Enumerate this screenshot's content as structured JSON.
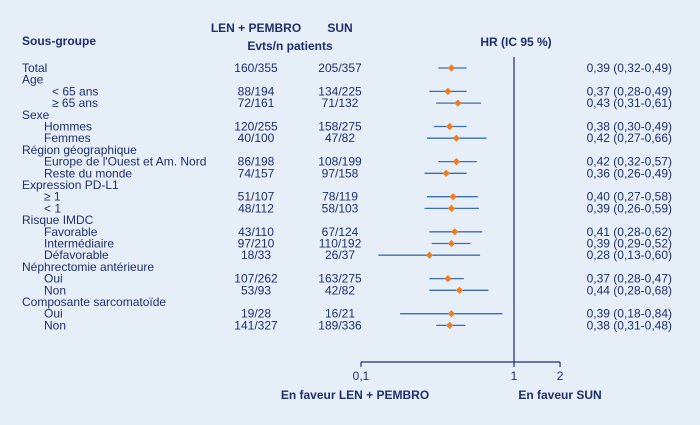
{
  "chart_data": {
    "type": "forest",
    "x_axis": {
      "scale": "log",
      "range": [
        0.1,
        2
      ],
      "ticks": [
        "0,1",
        "1",
        "2"
      ],
      "reference_line": 1
    },
    "headers": {
      "subgroup": "Sous-groupe",
      "len_pembro": "LEN + PEMBRO",
      "sun": "SUN",
      "events": "Evts/n patients",
      "hr": "HR (IC 95 %)"
    },
    "footer": {
      "left": "En faveur LEN + PEMBRO",
      "right": "En faveur SUN"
    },
    "rows": [
      {
        "label": "Total",
        "indent": 0,
        "len": "160/355",
        "sun": "205/357",
        "hr_text": "0,39 (0,32-0,49)",
        "hr": 0.39,
        "lo": 0.32,
        "hi": 0.49
      },
      {
        "label": "Age",
        "indent": 0,
        "header": true
      },
      {
        "label": "< 65 ans",
        "indent": 2,
        "len": "88/194",
        "sun": "134/225",
        "hr_text": "0,37 (0,28-0,49)",
        "hr": 0.37,
        "lo": 0.28,
        "hi": 0.49
      },
      {
        "label": "≥ 65 ans",
        "indent": 2,
        "len": "72/161",
        "sun": "71/132",
        "hr_text": "0,43 (0,31-0,61)",
        "hr": 0.43,
        "lo": 0.31,
        "hi": 0.61
      },
      {
        "label": "Sexe",
        "indent": 0,
        "header": true
      },
      {
        "label": "Hommes",
        "indent": 1,
        "len": "120/255",
        "sun": "158/275",
        "hr_text": "0,38 (0,30-0,49)",
        "hr": 0.38,
        "lo": 0.3,
        "hi": 0.49
      },
      {
        "label": "Femmes",
        "indent": 1,
        "len": "40/100",
        "sun": "47/82",
        "hr_text": "0,42 (0,27-0,66)",
        "hr": 0.42,
        "lo": 0.27,
        "hi": 0.66
      },
      {
        "label": "Région géographique",
        "indent": 0,
        "header": true
      },
      {
        "label": "Europe de l'Ouest et Am. Nord",
        "indent": 1,
        "len": "86/198",
        "sun": "108/199",
        "hr_text": "0,42 (0,32-0,57)",
        "hr": 0.42,
        "lo": 0.32,
        "hi": 0.57
      },
      {
        "label": "Reste du monde",
        "indent": 1,
        "len": "74/157",
        "sun": "97/158",
        "hr_text": "0,36 (0,26-0,49)",
        "hr": 0.36,
        "lo": 0.26,
        "hi": 0.49
      },
      {
        "label": "Expression PD-L1",
        "indent": 0,
        "header": true
      },
      {
        "label": "≥ 1",
        "indent": 1,
        "len": "51/107",
        "sun": "78/119",
        "hr_text": "0,40 (0,27-0,58)",
        "hr": 0.4,
        "lo": 0.27,
        "hi": 0.58
      },
      {
        "label": "< 1",
        "indent": 1,
        "len": "48/112",
        "sun": "58/103",
        "hr_text": "0,39 (0,26-0,59)",
        "hr": 0.39,
        "lo": 0.26,
        "hi": 0.59
      },
      {
        "label": "Risque IMDC",
        "indent": 0,
        "header": true
      },
      {
        "label": "Favorable",
        "indent": 1,
        "len": "43/110",
        "sun": "67/124",
        "hr_text": "0,41 (0,28-0,62)",
        "hr": 0.41,
        "lo": 0.28,
        "hi": 0.62
      },
      {
        "label": "Intermédiaire",
        "indent": 1,
        "len": "97/210",
        "sun": "110/192",
        "hr_text": "0,39 (0,29-0,52)",
        "hr": 0.39,
        "lo": 0.29,
        "hi": 0.52
      },
      {
        "label": "Défavorable",
        "indent": 1,
        "len": "18/33",
        "sun": "26/37",
        "hr_text": "0,28 (0,13-0,60)",
        "hr": 0.28,
        "lo": 0.13,
        "hi": 0.6
      },
      {
        "label": "Néphrectomie antérieure",
        "indent": 0,
        "header": true
      },
      {
        "label": "Oui",
        "indent": 1,
        "len": "107/262",
        "sun": "163/275",
        "hr_text": "0,37 (0,28-0,47)",
        "hr": 0.37,
        "lo": 0.28,
        "hi": 0.47
      },
      {
        "label": "Non",
        "indent": 1,
        "len": "53/93",
        "sun": "42/82",
        "hr_text": "0,44 (0,28-0,68)",
        "hr": 0.44,
        "lo": 0.28,
        "hi": 0.68
      },
      {
        "label": "Composante sarcomatoïde",
        "indent": 0,
        "header": true
      },
      {
        "label": "Oui",
        "indent": 1,
        "len": "19/28",
        "sun": "16/21",
        "hr_text": "0,39 (0,18-0,84)",
        "hr": 0.39,
        "lo": 0.18,
        "hi": 0.84
      },
      {
        "label": "Non",
        "indent": 1,
        "len": "141/327",
        "sun": "189/336",
        "hr_text": "0,38 (0,31-0,48)",
        "hr": 0.38,
        "lo": 0.31,
        "hi": 0.48
      }
    ]
  },
  "colors": {
    "background": "#e6eef7",
    "text": "#1f2f6e",
    "ci_line": "#3a6fb5",
    "marker": "#ef7d22",
    "axis": "#1f2f6e"
  }
}
